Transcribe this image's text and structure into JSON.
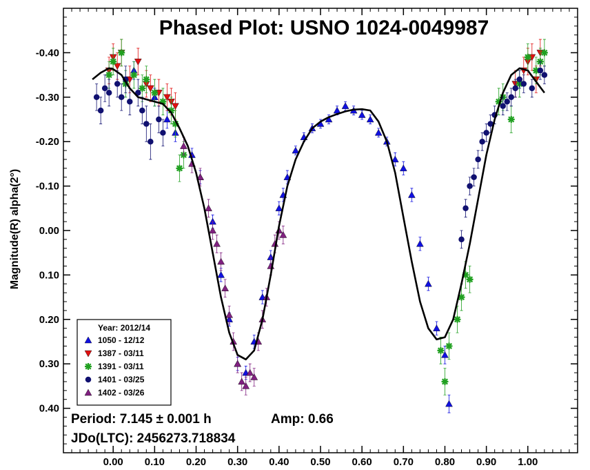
{
  "chart_data": {
    "type": "scatter",
    "title": "Phased Plot: USNO 1024-0049987",
    "xlabel": "",
    "ylabel": "Magnitude(R) alpha(2°)",
    "xlim": [
      -0.12,
      1.12
    ],
    "ylim": [
      -0.5,
      0.5
    ],
    "y_inverted": true,
    "x_ticks": [
      "0.00",
      "0.10",
      "0.20",
      "0.30",
      "0.40",
      "0.50",
      "0.60",
      "0.70",
      "0.80",
      "0.90",
      "1.00"
    ],
    "y_ticks": [
      "-0.40",
      "-0.30",
      "-0.20",
      "-0.10",
      "0.00",
      "0.10",
      "0.20",
      "0.30",
      "0.40"
    ],
    "legend": {
      "title": "Year: 2012/14",
      "placement": "bottom-left",
      "entries": [
        {
          "label": "1050 - 12/12",
          "marker": "triangle-up",
          "color": "#1010e0"
        },
        {
          "label": "1387 - 03/11",
          "marker": "triangle-down",
          "color": "#e01010"
        },
        {
          "label": "1391 - 03/11",
          "marker": "asterisk",
          "color": "#20a020"
        },
        {
          "label": "1401 - 03/25",
          "marker": "circle",
          "color": "#101070"
        },
        {
          "label": "1402 - 03/26",
          "marker": "triangle-up",
          "color": "#802080"
        }
      ]
    },
    "fit_curve": {
      "x": [
        -0.05,
        -0.03,
        -0.01,
        0.0,
        0.02,
        0.04,
        0.06,
        0.08,
        0.1,
        0.12,
        0.14,
        0.16,
        0.18,
        0.2,
        0.22,
        0.24,
        0.26,
        0.28,
        0.3,
        0.32,
        0.34,
        0.36,
        0.38,
        0.4,
        0.42,
        0.44,
        0.46,
        0.48,
        0.5,
        0.52,
        0.54,
        0.56,
        0.58,
        0.6,
        0.62,
        0.64,
        0.66,
        0.68,
        0.7,
        0.72,
        0.74,
        0.76,
        0.78,
        0.8,
        0.82,
        0.84,
        0.86,
        0.88,
        0.9,
        0.92,
        0.94,
        0.96,
        0.98,
        1.0,
        1.02,
        1.04
      ],
      "y": [
        -0.34,
        -0.355,
        -0.365,
        -0.363,
        -0.35,
        -0.32,
        -0.3,
        -0.295,
        -0.29,
        -0.285,
        -0.265,
        -0.23,
        -0.19,
        -0.13,
        -0.05,
        0.05,
        0.15,
        0.23,
        0.28,
        0.29,
        0.27,
        0.2,
        0.1,
        -0.01,
        -0.1,
        -0.16,
        -0.2,
        -0.23,
        -0.245,
        -0.255,
        -0.262,
        -0.268,
        -0.272,
        -0.273,
        -0.27,
        -0.245,
        -0.2,
        -0.13,
        -0.03,
        0.07,
        0.16,
        0.22,
        0.245,
        0.24,
        0.2,
        0.12,
        0.03,
        -0.07,
        -0.17,
        -0.25,
        -0.31,
        -0.35,
        -0.365,
        -0.36,
        -0.335,
        -0.31
      ]
    },
    "series": [
      {
        "name": "1050 - 12/12",
        "marker": "triangle-up",
        "color": "#1010e0",
        "x": [
          0.05,
          0.1,
          0.13,
          0.15,
          0.19,
          0.21,
          0.24,
          0.26,
          0.28,
          0.3,
          0.32,
          0.34,
          0.36,
          0.38,
          0.4,
          0.41,
          0.42,
          0.44,
          0.46,
          0.48,
          0.5,
          0.52,
          0.54,
          0.56,
          0.58,
          0.6,
          0.62,
          0.64,
          0.66,
          0.68,
          0.7,
          0.72,
          0.74,
          0.76,
          0.78,
          0.8,
          0.81
        ],
        "y": [
          -0.36,
          -0.3,
          -0.25,
          -0.22,
          -0.17,
          -0.12,
          -0.02,
          0.1,
          0.2,
          0.3,
          0.32,
          0.25,
          0.15,
          0.06,
          -0.05,
          -0.08,
          -0.12,
          -0.18,
          -0.21,
          -0.23,
          -0.24,
          -0.25,
          -0.27,
          -0.28,
          -0.27,
          -0.26,
          -0.25,
          -0.22,
          -0.2,
          -0.16,
          -0.14,
          -0.08,
          0.03,
          0.12,
          0.22,
          0.28,
          0.39
        ],
        "err": [
          0.02,
          0.02,
          0.02,
          0.02,
          0.015,
          0.015,
          0.015,
          0.015,
          0.015,
          0.015,
          0.015,
          0.015,
          0.015,
          0.015,
          0.015,
          0.015,
          0.015,
          0.01,
          0.01,
          0.01,
          0.01,
          0.01,
          0.01,
          0.01,
          0.01,
          0.01,
          0.01,
          0.01,
          0.01,
          0.015,
          0.015,
          0.015,
          0.015,
          0.015,
          0.015,
          0.02,
          0.02
        ]
      },
      {
        "name": "1387 - 03/11",
        "marker": "triangle-down",
        "color": "#e01010",
        "x": [
          -0.01,
          0.0,
          0.01,
          0.02,
          0.04,
          0.06,
          0.08,
          0.09,
          0.11,
          0.13,
          0.14,
          0.15,
          0.97,
          0.99,
          1.0,
          1.01,
          1.02,
          1.03
        ],
        "y": [
          -0.36,
          -0.39,
          -0.37,
          -0.4,
          -0.34,
          -0.38,
          -0.33,
          -0.32,
          -0.31,
          -0.3,
          -0.29,
          -0.28,
          -0.33,
          -0.36,
          -0.38,
          -0.39,
          -0.34,
          -0.4
        ],
        "err": [
          0.03,
          0.03,
          0.03,
          0.03,
          0.03,
          0.03,
          0.03,
          0.03,
          0.03,
          0.03,
          0.03,
          0.03,
          0.03,
          0.03,
          0.03,
          0.03,
          0.03,
          0.03
        ]
      },
      {
        "name": "1391 - 03/11",
        "marker": "asterisk",
        "color": "#20a020",
        "x": [
          -0.01,
          0.0,
          0.02,
          0.03,
          0.05,
          0.07,
          0.08,
          0.1,
          0.12,
          0.14,
          0.15,
          0.16,
          0.17,
          0.79,
          0.8,
          0.81,
          0.83,
          0.84,
          0.85,
          0.86,
          0.93,
          0.94,
          0.96,
          0.98,
          1.0,
          1.02,
          1.03,
          1.04
        ],
        "y": [
          -0.35,
          -0.38,
          -0.4,
          -0.33,
          -0.35,
          -0.32,
          -0.34,
          -0.31,
          -0.29,
          -0.27,
          -0.24,
          -0.14,
          -0.17,
          0.27,
          0.34,
          0.26,
          0.2,
          0.15,
          0.1,
          0.11,
          -0.29,
          -0.3,
          -0.25,
          -0.33,
          -0.39,
          -0.36,
          -0.38,
          -0.4
        ],
        "err": [
          0.03,
          0.03,
          0.03,
          0.03,
          0.03,
          0.03,
          0.03,
          0.03,
          0.03,
          0.03,
          0.03,
          0.03,
          0.03,
          0.03,
          0.03,
          0.03,
          0.03,
          0.03,
          0.03,
          0.03,
          0.03,
          0.03,
          0.03,
          0.03,
          0.03,
          0.03,
          0.03,
          0.03
        ]
      },
      {
        "name": "1401 - 03/25",
        "marker": "circle",
        "color": "#101070",
        "x": [
          -0.04,
          -0.03,
          -0.02,
          -0.01,
          0.01,
          0.02,
          0.03,
          0.04,
          0.06,
          0.07,
          0.08,
          0.09,
          0.11,
          0.12,
          0.84,
          0.85,
          0.86,
          0.87,
          0.88,
          0.89,
          0.9,
          0.91,
          0.92,
          0.94,
          0.95,
          0.96,
          0.97,
          0.98,
          0.99,
          1.01,
          1.03,
          1.04
        ],
        "y": [
          -0.3,
          -0.27,
          -0.32,
          -0.31,
          -0.33,
          -0.3,
          -0.34,
          -0.29,
          -0.31,
          -0.27,
          -0.24,
          -0.2,
          -0.25,
          -0.22,
          0.02,
          -0.05,
          -0.1,
          -0.12,
          -0.16,
          -0.2,
          -0.22,
          -0.24,
          -0.26,
          -0.28,
          -0.29,
          -0.3,
          -0.32,
          -0.34,
          -0.33,
          -0.32,
          -0.36,
          -0.35
        ],
        "err": [
          0.03,
          0.03,
          0.03,
          0.03,
          0.03,
          0.03,
          0.03,
          0.03,
          0.03,
          0.03,
          0.04,
          0.04,
          0.03,
          0.03,
          0.02,
          0.02,
          0.02,
          0.02,
          0.02,
          0.02,
          0.02,
          0.02,
          0.02,
          0.02,
          0.02,
          0.02,
          0.02,
          0.02,
          0.02,
          0.02,
          0.02,
          0.02
        ]
      },
      {
        "name": "1402 - 03/26",
        "marker": "triangle-up",
        "color": "#802080",
        "x": [
          0.17,
          0.19,
          0.21,
          0.23,
          0.24,
          0.25,
          0.26,
          0.27,
          0.28,
          0.29,
          0.3,
          0.31,
          0.32,
          0.33,
          0.34,
          0.35,
          0.36,
          0.37,
          0.38,
          0.39,
          0.4,
          0.41
        ],
        "y": [
          -0.19,
          -0.15,
          -0.12,
          -0.05,
          0.0,
          0.03,
          0.07,
          0.13,
          0.19,
          0.25,
          0.3,
          0.34,
          0.35,
          0.32,
          0.33,
          0.25,
          0.2,
          0.15,
          0.08,
          0.03,
          0.0,
          0.01
        ],
        "err": [
          0.02,
          0.02,
          0.02,
          0.02,
          0.02,
          0.02,
          0.02,
          0.02,
          0.02,
          0.02,
          0.02,
          0.02,
          0.02,
          0.02,
          0.02,
          0.02,
          0.02,
          0.02,
          0.02,
          0.02,
          0.02,
          0.02
        ]
      }
    ],
    "annotations": {
      "period": "Period: 7.145 ± 0.001 h",
      "amp": "Amp: 0.66",
      "jdo": "JDo(LTC): 2456273.718834"
    }
  }
}
